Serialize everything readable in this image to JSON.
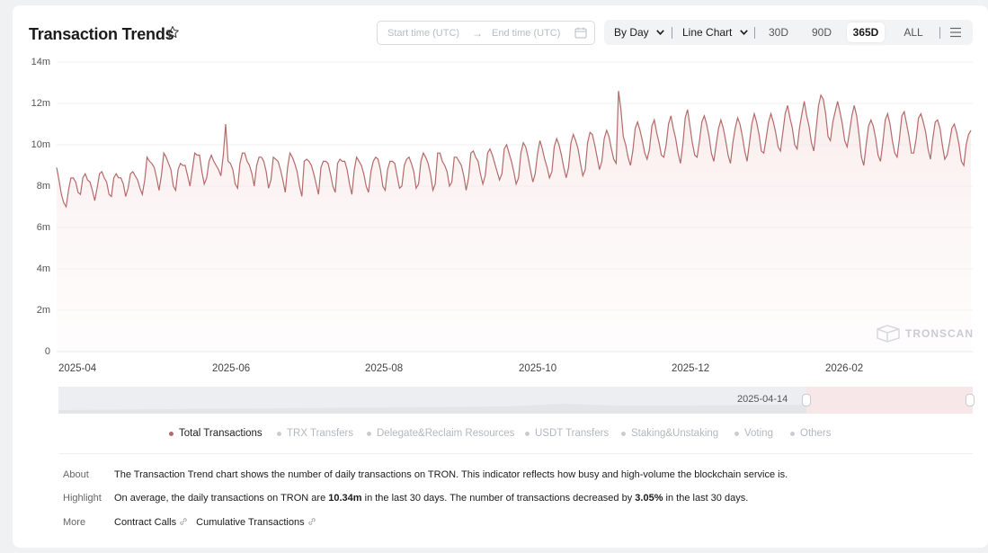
{
  "header": {
    "title": "Transaction Trends",
    "start_placeholder": "Start time (UTC)",
    "arrow": "→",
    "end_placeholder": "End time (UTC)"
  },
  "toolbar": {
    "period": "By Day",
    "chart_type": "Line Chart",
    "ranges": [
      "30D",
      "90D",
      "365D",
      "ALL"
    ],
    "active_range": "365D"
  },
  "chart_data": {
    "type": "line",
    "series": [
      {
        "name": "Total Transactions",
        "color": "#b56a6a",
        "values": [
          8.9,
          8.3,
          7.6,
          7.2,
          7.0,
          7.8,
          8.4,
          8.4,
          8.2,
          7.7,
          7.6,
          8.4,
          8.6,
          8.3,
          8.2,
          7.8,
          7.3,
          7.9,
          8.6,
          8.7,
          8.4,
          8.2,
          7.6,
          7.5,
          8.4,
          8.6,
          8.4,
          8.4,
          8.1,
          7.5,
          7.9,
          8.6,
          8.7,
          8.5,
          8.3,
          7.9,
          7.6,
          8.3,
          9.4,
          9.2,
          9.1,
          8.9,
          8.4,
          7.8,
          8.5,
          9.6,
          9.4,
          9.1,
          8.8,
          8.0,
          7.8,
          8.8,
          9.1,
          9.0,
          9.0,
          8.5,
          8.0,
          8.8,
          9.6,
          9.5,
          9.5,
          8.7,
          8.1,
          8.4,
          9.2,
          9.5,
          9.2,
          9.0,
          8.8,
          8.5,
          9.5,
          11.0,
          9.2,
          9.1,
          8.8,
          8.1,
          7.9,
          9.1,
          9.6,
          9.6,
          9.2,
          9.0,
          8.6,
          8.0,
          9.0,
          9.4,
          9.4,
          9.2,
          8.7,
          7.9,
          8.3,
          9.4,
          9.3,
          9.2,
          8.8,
          8.3,
          7.7,
          8.9,
          9.6,
          9.4,
          9.1,
          8.7,
          8.0,
          7.5,
          9.2,
          9.3,
          9.2,
          9.0,
          8.6,
          8.1,
          7.6,
          8.9,
          9.2,
          9.2,
          9.1,
          8.6,
          8.0,
          7.7,
          9.1,
          9.3,
          9.2,
          9.2,
          8.8,
          8.1,
          7.6,
          8.8,
          9.4,
          9.2,
          9.0,
          8.6,
          8.0,
          7.7,
          8.7,
          9.2,
          9.4,
          9.3,
          8.8,
          8.0,
          7.8,
          8.8,
          9.2,
          9.2,
          9.1,
          8.5,
          7.9,
          8.0,
          9.0,
          9.3,
          9.4,
          9.1,
          8.7,
          7.9,
          8.1,
          9.2,
          9.6,
          9.4,
          9.1,
          8.6,
          7.8,
          8.1,
          9.6,
          9.6,
          9.2,
          9.0,
          8.7,
          8.0,
          8.2,
          9.4,
          9.4,
          9.2,
          9.0,
          8.5,
          7.8,
          8.4,
          9.6,
          9.7,
          9.4,
          9.2,
          8.6,
          8.1,
          8.5,
          9.6,
          9.8,
          9.5,
          9.1,
          8.7,
          8.3,
          8.6,
          9.8,
          10.0,
          9.6,
          9.2,
          8.7,
          8.1,
          8.4,
          9.6,
          10.1,
          9.9,
          9.4,
          8.8,
          8.2,
          8.6,
          9.6,
          10.2,
          9.8,
          9.3,
          8.9,
          8.4,
          8.7,
          9.9,
          10.3,
          10.0,
          9.5,
          8.9,
          8.4,
          8.9,
          10.1,
          10.5,
          10.2,
          9.8,
          9.1,
          8.5,
          8.8,
          10.1,
          10.6,
          10.5,
          10.0,
          9.4,
          8.8,
          9.2,
          10.3,
          10.7,
          10.4,
          9.8,
          9.3,
          9.1,
          12.6,
          11.7,
          10.4,
          10.0,
          9.4,
          9.0,
          9.7,
          10.8,
          11.1,
          10.7,
          10.2,
          9.6,
          9.3,
          9.8,
          10.9,
          11.2,
          10.6,
          10.1,
          9.5,
          9.4,
          10.0,
          11.0,
          11.4,
          10.8,
          10.3,
          9.6,
          9.1,
          10.0,
          11.3,
          11.7,
          10.9,
          10.1,
          9.5,
          9.4,
          10.2,
          11.1,
          11.4,
          11.0,
          10.4,
          9.6,
          9.2,
          10.0,
          10.8,
          11.2,
          10.8,
          10.2,
          9.5,
          9.1,
          10.1,
          10.8,
          11.3,
          11.0,
          10.4,
          9.7,
          9.2,
          10.1,
          11.0,
          11.5,
          11.1,
          10.5,
          9.7,
          9.6,
          10.3,
          11.1,
          11.5,
          11.1,
          10.6,
          9.9,
          9.7,
          10.6,
          11.5,
          11.9,
          11.3,
          10.8,
          10.0,
          9.8,
          10.8,
          11.5,
          12.1,
          11.4,
          10.9,
          10.1,
          9.7,
          10.8,
          11.9,
          12.4,
          12.2,
          11.5,
          10.4,
          10.2,
          11.1,
          11.6,
          12.1,
          11.6,
          11.0,
          10.2,
          9.9,
          10.6,
          11.4,
          11.9,
          11.4,
          10.5,
          9.4,
          9.0,
          10.0,
          10.9,
          11.2,
          10.9,
          10.3,
          9.5,
          9.2,
          10.1,
          11.2,
          11.5,
          11.0,
          10.2,
          9.6,
          9.4,
          10.3,
          11.4,
          11.6,
          11.0,
          10.4,
          9.6,
          9.6,
          10.3,
          11.3,
          11.5,
          11.1,
          10.6,
          9.8,
          9.3,
          10.3,
          11.1,
          11.2,
          10.8,
          10.0,
          9.3,
          9.5,
          10.1,
          10.8,
          11.0,
          10.6,
          10.0,
          9.2,
          9.0,
          10.0,
          10.5,
          10.7
        ],
        "y_unit": "m"
      }
    ],
    "x_ticks": [
      "2025-04",
      "2025-06",
      "2025-08",
      "2025-10",
      "2025-12",
      "2026-02"
    ],
    "y_ticks": [
      "0",
      "2m",
      "4m",
      "6m",
      "8m",
      "10m",
      "12m",
      "14m"
    ],
    "ylim": [
      0,
      14
    ],
    "grid": true
  },
  "watermark": "TRONSCAN",
  "slider": {
    "start_label": "2025-04-14"
  },
  "legend": [
    "Total Transactions",
    "TRX Transfers",
    "Delegate&Reclaim Resources",
    "USDT Transfers",
    "Staking&Unstaking",
    "Voting",
    "Others"
  ],
  "info": {
    "about_label": "About",
    "about_text": "The Transaction Trend chart shows the number of daily transactions on TRON. This indicator reflects how busy and high-volume the blockchain service is.",
    "highlight_label": "Highlight",
    "highlight_pre": "On average, the daily transactions on TRON are ",
    "highlight_value": "10.34m",
    "highlight_mid": " in the last 30 days.  The number of transactions decreased by ",
    "highlight_pct": "3.05%",
    "highlight_post": " in the last 30 days.",
    "more_label": "More",
    "links": [
      "Contract Calls",
      "Cumulative Transactions"
    ]
  }
}
